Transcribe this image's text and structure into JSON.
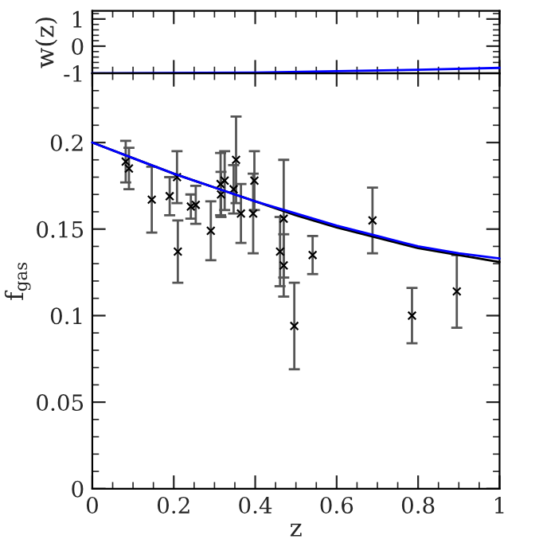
{
  "chart_data": [
    {
      "type": "line",
      "ylabel": "w(z)",
      "xlim": [
        0,
        1
      ],
      "xticks": [
        0,
        0.2,
        0.4,
        0.6,
        0.8,
        1
      ],
      "ylim": [
        -1,
        1.3
      ],
      "yticks": [
        -1,
        0,
        1
      ],
      "tick_labels": "y",
      "grid": false,
      "legend": false,
      "marker": "none",
      "line_style": "solid",
      "series": [
        {
          "color": "#000000",
          "x": [
            0,
            1
          ],
          "values": [
            -1,
            -1
          ]
        },
        {
          "color": "#0000ff",
          "x": [
            0,
            0.4,
            0.6,
            0.8,
            1
          ],
          "values": [
            -1,
            -0.97,
            -0.92,
            -0.87,
            -0.8
          ]
        }
      ]
    },
    {
      "type": "scatter",
      "xlabel": "z",
      "ylabel": "f$_{gas}$",
      "xlim": [
        0,
        1
      ],
      "xticks": [
        0,
        0.2,
        0.4,
        0.6,
        0.8,
        1
      ],
      "ylim": [
        0,
        0.24
      ],
      "yticks": [
        0,
        0.05,
        0.1,
        0.15,
        0.2
      ],
      "grid": false,
      "legend": false,
      "marker": "cross",
      "series": [
        {
          "type": "scatter",
          "color": "#000000",
          "marker": "cross",
          "x": [
            0.082,
            0.09,
            0.146,
            0.19,
            0.208,
            0.21,
            0.242,
            0.254,
            0.291,
            0.316,
            0.315,
            0.325,
            0.347,
            0.353,
            0.365,
            0.398,
            0.395,
            0.461,
            0.47,
            0.47,
            0.496,
            0.541,
            0.688,
            0.785,
            0.895
          ],
          "values": [
            0.189,
            0.185,
            0.167,
            0.169,
            0.18,
            0.137,
            0.163,
            0.164,
            0.149,
            0.17,
            0.176,
            0.178,
            0.173,
            0.19,
            0.159,
            0.178,
            0.159,
            0.137,
            0.156,
            0.129,
            0.094,
            0.135,
            0.155,
            0.1,
            0.114
          ],
          "errors": [
            0.012,
            0.012,
            0.019,
            0.011,
            0.015,
            0.018,
            0.007,
            0.011,
            0.017,
            0.013,
            0.018,
            0.017,
            0.014,
            0.025,
            0.017,
            0.017,
            0.023,
            0.02,
            0.034,
            0.018,
            0.025,
            0.011,
            0.019,
            0.016,
            0.021
          ]
        },
        {
          "type": "line",
          "color": "#000000",
          "marker": "none",
          "line_style": "solid",
          "x": [
            0,
            0.1,
            0.2,
            0.3,
            0.4,
            0.5,
            0.6,
            0.7,
            0.8,
            0.9,
            1
          ],
          "values": [
            0.2,
            0.191,
            0.182,
            0.174,
            0.166,
            0.158,
            0.151,
            0.145,
            0.139,
            0.135,
            0.131
          ]
        },
        {
          "type": "line",
          "color": "#0000ff",
          "marker": "none",
          "line_style": "solid",
          "x": [
            0,
            0.1,
            0.2,
            0.3,
            0.4,
            0.5,
            0.6,
            0.7,
            0.8,
            0.9,
            1
          ],
          "values": [
            0.2,
            0.191,
            0.182,
            0.174,
            0.166,
            0.159,
            0.152,
            0.146,
            0.14,
            0.136,
            0.133
          ]
        }
      ]
    }
  ]
}
